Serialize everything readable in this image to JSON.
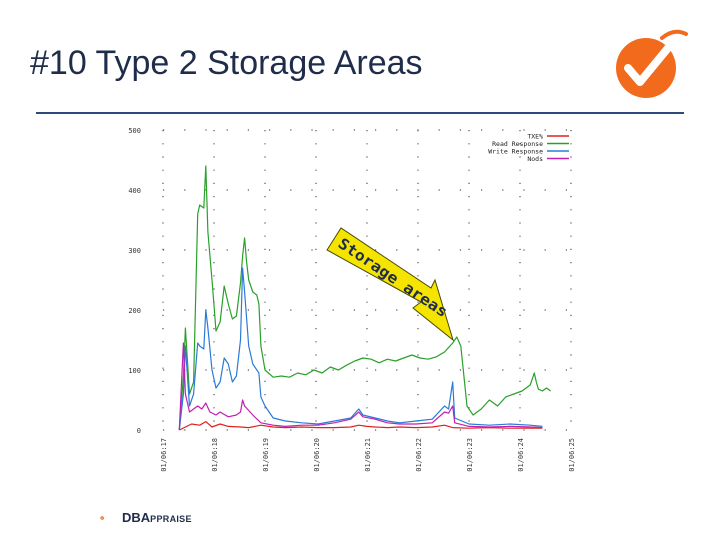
{
  "slide": {
    "title": "#10  Type 2 Storage Areas",
    "footer_brand_prefix": "DBA",
    "footer_brand_suffix": "PPRAISE"
  },
  "colors": {
    "accent_orange": "#f26b1d",
    "title_navy": "#1f2d4a",
    "rule": "#2c4a7a",
    "annotation_fill": "#f5e400"
  },
  "annotation": {
    "text": "Storage areas"
  },
  "chart_data": {
    "type": "line",
    "ylim": [
      0,
      500
    ],
    "yticks": [
      0,
      100,
      200,
      300,
      400,
      500
    ],
    "xlim": [
      0,
      1
    ],
    "xticks": [
      {
        "pos": 0.0,
        "label": "01/06:17"
      },
      {
        "pos": 0.125,
        "label": "01/06:18"
      },
      {
        "pos": 0.25,
        "label": "01/06:19"
      },
      {
        "pos": 0.375,
        "label": "01/06:20"
      },
      {
        "pos": 0.5,
        "label": "01/06:21"
      },
      {
        "pos": 0.625,
        "label": "01/06:22"
      },
      {
        "pos": 0.75,
        "label": "01/06:23"
      },
      {
        "pos": 0.875,
        "label": "01/06:24"
      },
      {
        "pos": 1.0,
        "label": "01/06:25"
      }
    ],
    "grid": "dotted",
    "legend": "top-right",
    "series": [
      {
        "name": "TXE%",
        "color": "#e02020",
        "points": [
          [
            0.04,
            0
          ],
          [
            0.055,
            5
          ],
          [
            0.07,
            10
          ],
          [
            0.09,
            8
          ],
          [
            0.105,
            14
          ],
          [
            0.12,
            5
          ],
          [
            0.14,
            10
          ],
          [
            0.16,
            6
          ],
          [
            0.19,
            5
          ],
          [
            0.21,
            4
          ],
          [
            0.24,
            8
          ],
          [
            0.27,
            5
          ],
          [
            0.3,
            4
          ],
          [
            0.34,
            5
          ],
          [
            0.38,
            4
          ],
          [
            0.42,
            4
          ],
          [
            0.46,
            5
          ],
          [
            0.48,
            8
          ],
          [
            0.5,
            6
          ],
          [
            0.52,
            5
          ],
          [
            0.55,
            4
          ],
          [
            0.58,
            5
          ],
          [
            0.62,
            4
          ],
          [
            0.66,
            5
          ],
          [
            0.69,
            8
          ],
          [
            0.71,
            4
          ],
          [
            0.75,
            3
          ],
          [
            0.8,
            4
          ],
          [
            0.85,
            3
          ],
          [
            0.9,
            3
          ],
          [
            0.93,
            3
          ]
        ]
      },
      {
        "name": "Read Response",
        "color": "#2aa02a",
        "points": [
          [
            0.04,
            0
          ],
          [
            0.05,
            90
          ],
          [
            0.055,
            170
          ],
          [
            0.065,
            60
          ],
          [
            0.075,
            80
          ],
          [
            0.085,
            360
          ],
          [
            0.09,
            375
          ],
          [
            0.1,
            370
          ],
          [
            0.105,
            440
          ],
          [
            0.11,
            330
          ],
          [
            0.12,
            250
          ],
          [
            0.13,
            165
          ],
          [
            0.14,
            180
          ],
          [
            0.15,
            240
          ],
          [
            0.16,
            210
          ],
          [
            0.17,
            185
          ],
          [
            0.18,
            190
          ],
          [
            0.19,
            245
          ],
          [
            0.195,
            290
          ],
          [
            0.2,
            320
          ],
          [
            0.205,
            280
          ],
          [
            0.21,
            250
          ],
          [
            0.22,
            230
          ],
          [
            0.23,
            225
          ],
          [
            0.235,
            210
          ],
          [
            0.24,
            140
          ],
          [
            0.25,
            100
          ],
          [
            0.27,
            88
          ],
          [
            0.29,
            90
          ],
          [
            0.31,
            88
          ],
          [
            0.33,
            95
          ],
          [
            0.35,
            92
          ],
          [
            0.37,
            100
          ],
          [
            0.39,
            95
          ],
          [
            0.41,
            105
          ],
          [
            0.43,
            100
          ],
          [
            0.45,
            108
          ],
          [
            0.47,
            115
          ],
          [
            0.49,
            120
          ],
          [
            0.51,
            118
          ],
          [
            0.53,
            112
          ],
          [
            0.55,
            118
          ],
          [
            0.57,
            115
          ],
          [
            0.59,
            120
          ],
          [
            0.61,
            125
          ],
          [
            0.63,
            120
          ],
          [
            0.65,
            118
          ],
          [
            0.67,
            122
          ],
          [
            0.69,
            130
          ],
          [
            0.71,
            145
          ],
          [
            0.72,
            155
          ],
          [
            0.73,
            140
          ],
          [
            0.745,
            40
          ],
          [
            0.76,
            25
          ],
          [
            0.78,
            35
          ],
          [
            0.8,
            50
          ],
          [
            0.82,
            40
          ],
          [
            0.84,
            55
          ],
          [
            0.86,
            60
          ],
          [
            0.88,
            65
          ],
          [
            0.9,
            75
          ],
          [
            0.91,
            95
          ],
          [
            0.915,
            80
          ],
          [
            0.92,
            68
          ],
          [
            0.93,
            65
          ],
          [
            0.94,
            70
          ],
          [
            0.95,
            65
          ]
        ]
      },
      {
        "name": "Write Response",
        "color": "#2a7ad8",
        "points": [
          [
            0.04,
            0
          ],
          [
            0.05,
            60
          ],
          [
            0.055,
            140
          ],
          [
            0.065,
            40
          ],
          [
            0.075,
            60
          ],
          [
            0.085,
            145
          ],
          [
            0.09,
            140
          ],
          [
            0.1,
            135
          ],
          [
            0.105,
            200
          ],
          [
            0.11,
            170
          ],
          [
            0.12,
            100
          ],
          [
            0.13,
            70
          ],
          [
            0.14,
            80
          ],
          [
            0.15,
            120
          ],
          [
            0.16,
            110
          ],
          [
            0.17,
            80
          ],
          [
            0.18,
            90
          ],
          [
            0.19,
            150
          ],
          [
            0.195,
            270
          ],
          [
            0.2,
            230
          ],
          [
            0.21,
            140
          ],
          [
            0.22,
            110
          ],
          [
            0.235,
            95
          ],
          [
            0.24,
            55
          ],
          [
            0.25,
            40
          ],
          [
            0.27,
            20
          ],
          [
            0.3,
            15
          ],
          [
            0.34,
            12
          ],
          [
            0.38,
            10
          ],
          [
            0.42,
            15
          ],
          [
            0.46,
            20
          ],
          [
            0.48,
            35
          ],
          [
            0.49,
            25
          ],
          [
            0.52,
            20
          ],
          [
            0.55,
            15
          ],
          [
            0.58,
            12
          ],
          [
            0.62,
            15
          ],
          [
            0.66,
            18
          ],
          [
            0.69,
            40
          ],
          [
            0.7,
            35
          ],
          [
            0.71,
            80
          ],
          [
            0.715,
            20
          ],
          [
            0.75,
            10
          ],
          [
            0.8,
            8
          ],
          [
            0.85,
            10
          ],
          [
            0.9,
            8
          ],
          [
            0.93,
            6
          ]
        ]
      },
      {
        "name": "Nods",
        "color": "#c020b0",
        "points": [
          [
            0.04,
            0
          ],
          [
            0.05,
            145
          ],
          [
            0.055,
            60
          ],
          [
            0.065,
            30
          ],
          [
            0.075,
            35
          ],
          [
            0.085,
            40
          ],
          [
            0.095,
            35
          ],
          [
            0.105,
            45
          ],
          [
            0.115,
            30
          ],
          [
            0.13,
            25
          ],
          [
            0.14,
            30
          ],
          [
            0.16,
            22
          ],
          [
            0.18,
            25
          ],
          [
            0.19,
            30
          ],
          [
            0.195,
            50
          ],
          [
            0.2,
            40
          ],
          [
            0.22,
            25
          ],
          [
            0.24,
            12
          ],
          [
            0.27,
            8
          ],
          [
            0.3,
            6
          ],
          [
            0.34,
            8
          ],
          [
            0.38,
            8
          ],
          [
            0.42,
            12
          ],
          [
            0.46,
            18
          ],
          [
            0.48,
            30
          ],
          [
            0.49,
            22
          ],
          [
            0.52,
            18
          ],
          [
            0.55,
            12
          ],
          [
            0.58,
            10
          ],
          [
            0.62,
            10
          ],
          [
            0.66,
            12
          ],
          [
            0.69,
            30
          ],
          [
            0.7,
            28
          ],
          [
            0.71,
            40
          ],
          [
            0.715,
            12
          ],
          [
            0.75,
            6
          ],
          [
            0.8,
            5
          ],
          [
            0.85,
            6
          ],
          [
            0.9,
            5
          ],
          [
            0.93,
            4
          ]
        ]
      }
    ]
  }
}
